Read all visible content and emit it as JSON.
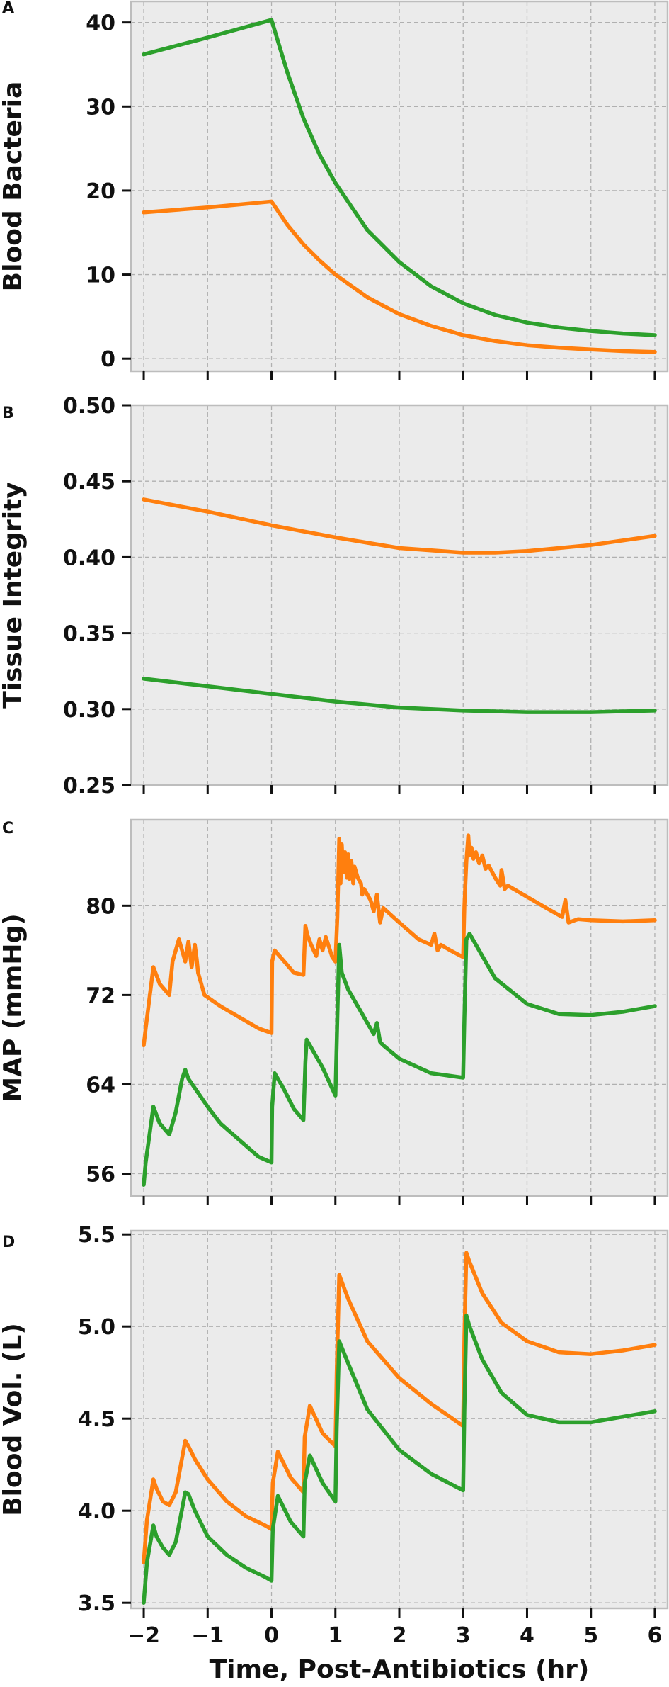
{
  "figure": {
    "xlabel": "Time, Post-Antibiotics (hr)",
    "xticks": [
      -2,
      -1,
      0,
      1,
      2,
      3,
      4,
      5,
      6
    ],
    "xlim": [
      -2.2,
      6.2
    ],
    "colors": {
      "orange": "#ff7f0e",
      "green": "#2ca02c",
      "panel_bg": "#ebebeb",
      "grid": "#b0b0b0",
      "spine": "#bdbdbd"
    }
  },
  "chart_data": [
    {
      "type": "line",
      "panel_letter": "A",
      "ylabel": "Blood Bacteria",
      "ylim": [
        -1.5,
        42.5
      ],
      "yticks": [
        0,
        10,
        20,
        30,
        40
      ],
      "ytick_labels": [
        "0",
        "10",
        "20",
        "30",
        "40"
      ],
      "grid": true,
      "series": [
        {
          "color": "#2ca02c",
          "x": [
            -2,
            -1,
            0,
            0.25,
            0.5,
            0.75,
            1,
            1.5,
            2,
            2.5,
            3,
            3.5,
            4,
            4.5,
            5,
            5.5,
            6
          ],
          "y": [
            36.2,
            38.2,
            40.3,
            34.0,
            28.6,
            24.3,
            20.9,
            15.3,
            11.5,
            8.6,
            6.6,
            5.2,
            4.3,
            3.7,
            3.3,
            3.0,
            2.8
          ]
        },
        {
          "color": "#ff7f0e",
          "x": [
            -2,
            -1,
            0,
            0.25,
            0.5,
            0.75,
            1,
            1.5,
            2,
            2.5,
            3,
            3.5,
            4,
            4.5,
            5,
            5.5,
            6
          ],
          "y": [
            17.4,
            18.0,
            18.7,
            15.9,
            13.6,
            11.7,
            10.0,
            7.3,
            5.3,
            3.9,
            2.8,
            2.1,
            1.6,
            1.3,
            1.1,
            0.9,
            0.8
          ]
        }
      ]
    },
    {
      "type": "line",
      "panel_letter": "B",
      "ylabel": "Tissue Integrity",
      "ylim": [
        0.25,
        0.5
      ],
      "yticks": [
        0.25,
        0.3,
        0.35,
        0.4,
        0.45,
        0.5
      ],
      "ytick_labels": [
        "0.25",
        "0.30",
        "0.35",
        "0.40",
        "0.45",
        "0.50"
      ],
      "grid": true,
      "series": [
        {
          "color": "#ff7f0e",
          "x": [
            -2,
            -1,
            0,
            1,
            2,
            3,
            3.5,
            4,
            5,
            6
          ],
          "y": [
            0.438,
            0.43,
            0.421,
            0.413,
            0.406,
            0.403,
            0.403,
            0.404,
            0.408,
            0.414
          ]
        },
        {
          "color": "#2ca02c",
          "x": [
            -2,
            -1,
            0,
            1,
            2,
            3,
            4,
            5,
            6
          ],
          "y": [
            0.32,
            0.315,
            0.31,
            0.305,
            0.301,
            0.299,
            0.298,
            0.298,
            0.299
          ]
        }
      ]
    },
    {
      "type": "line",
      "panel_letter": "C",
      "ylabel": "MAP (mmHg)",
      "ylim": [
        54,
        87.7
      ],
      "yticks": [
        56,
        64,
        72,
        80
      ],
      "ytick_labels": [
        "56",
        "64",
        "72",
        "80"
      ],
      "grid": true,
      "series": [
        {
          "color": "#ff7f0e",
          "x": [
            -2,
            -1.97,
            -1.85,
            -1.75,
            -1.6,
            -1.55,
            -1.45,
            -1.35,
            -1.3,
            -1.25,
            -1.2,
            -1.17,
            -1.15,
            -1.1,
            -1.05,
            -0.8,
            -0.5,
            -0.2,
            0,
            0.01,
            0.05,
            0.2,
            0.35,
            0.5,
            0.53,
            0.56,
            0.62,
            0.7,
            0.75,
            0.8,
            0.85,
            0.9,
            0.95,
            1,
            1.03,
            1.06,
            1.08,
            1.1,
            1.12,
            1.15,
            1.18,
            1.2,
            1.22,
            1.25,
            1.28,
            1.3,
            1.35,
            1.4,
            1.42,
            1.45,
            1.55,
            1.6,
            1.65,
            1.7,
            1.75,
            2,
            2.3,
            2.5,
            2.55,
            2.6,
            2.65,
            2.8,
            3,
            3.02,
            3.05,
            3.08,
            3.1,
            3.13,
            3.16,
            3.2,
            3.25,
            3.3,
            3.35,
            3.4,
            3.5,
            3.58,
            3.6,
            3.65,
            3.7,
            4,
            4.3,
            4.55,
            4.6,
            4.65,
            4.8,
            5,
            5.5,
            6
          ],
          "y": [
            67.5,
            69,
            74.5,
            73,
            72,
            75,
            77,
            75,
            76.8,
            74.5,
            76.5,
            75.2,
            74,
            73,
            72,
            71,
            70,
            69,
            68.6,
            75,
            76,
            75,
            74,
            73.8,
            78.2,
            77.4,
            76.5,
            75.5,
            77,
            76,
            77.2,
            76.3,
            75.4,
            75,
            79,
            86,
            82,
            85.5,
            83,
            84.8,
            82.5,
            84.6,
            82.4,
            84,
            82,
            83.5,
            82.5,
            82,
            81,
            81.5,
            80.5,
            79.5,
            81,
            78.5,
            79.8,
            78.5,
            77,
            76.5,
            77.5,
            76,
            76.5,
            76,
            75.4,
            80,
            84,
            86.3,
            84.5,
            85.2,
            84.2,
            84.8,
            83.8,
            84.5,
            83.3,
            83.6,
            82.5,
            81.8,
            83.2,
            81.5,
            81.8,
            80.8,
            79.8,
            79,
            80.5,
            78.5,
            78.8,
            78.7,
            78.6,
            78.7
          ]
        },
        {
          "color": "#2ca02c",
          "x": [
            -2,
            -1.97,
            -1.85,
            -1.75,
            -1.6,
            -1.5,
            -1.4,
            -1.35,
            -1.3,
            -1.0,
            -0.8,
            -0.5,
            -0.2,
            0,
            0.01,
            0.05,
            0.2,
            0.35,
            0.5,
            0.53,
            0.55,
            0.65,
            0.8,
            1,
            1.03,
            1.06,
            1.1,
            1.2,
            1.3,
            1.4,
            1.5,
            1.6,
            1.65,
            1.7,
            1.75,
            2,
            2.5,
            3,
            3.02,
            3.05,
            3.1,
            3.2,
            3.3,
            3.35,
            3.5,
            4,
            4.5,
            5,
            5.5,
            6
          ],
          "y": [
            55,
            57,
            62,
            60.5,
            59.5,
            61.5,
            64.5,
            65.3,
            64.5,
            62,
            60.5,
            59,
            57.5,
            57,
            62,
            65,
            63.5,
            61.8,
            60.8,
            66,
            68,
            67,
            65.5,
            63,
            70,
            76.5,
            74,
            72.5,
            71.5,
            70.5,
            69.5,
            68.5,
            69.5,
            67.8,
            67.5,
            66.3,
            65,
            64.6,
            70,
            77,
            77.5,
            76.5,
            75.5,
            75,
            73.5,
            71.2,
            70.3,
            70.2,
            70.5,
            71
          ]
        }
      ]
    },
    {
      "type": "line",
      "panel_letter": "D",
      "ylabel": "Blood Vol. (L)",
      "ylim": [
        3.47,
        5.52
      ],
      "yticks": [
        3.5,
        4.0,
        4.5,
        5.0,
        5.5
      ],
      "ytick_labels": [
        "3.5",
        "4.0",
        "4.5",
        "5.0",
        "5.5"
      ],
      "grid": true,
      "series": [
        {
          "color": "#ff7f0e",
          "x": [
            -2,
            -1.95,
            -1.85,
            -1.8,
            -1.7,
            -1.6,
            -1.5,
            -1.35,
            -1.3,
            -1.2,
            -1.0,
            -0.7,
            -0.4,
            -0.1,
            0,
            0.02,
            0.1,
            0.3,
            0.5,
            0.52,
            0.6,
            0.8,
            1,
            1.02,
            1.06,
            1.2,
            1.5,
            2.0,
            2.5,
            3,
            3.02,
            3.05,
            3.1,
            3.3,
            3.6,
            4,
            4.5,
            5,
            5.5,
            6
          ],
          "y": [
            3.72,
            3.95,
            4.17,
            4.12,
            4.05,
            4.03,
            4.1,
            4.38,
            4.35,
            4.28,
            4.17,
            4.05,
            3.97,
            3.92,
            3.9,
            4.15,
            4.32,
            4.18,
            4.1,
            4.4,
            4.57,
            4.42,
            4.35,
            4.75,
            5.28,
            5.15,
            4.92,
            4.72,
            4.58,
            4.46,
            4.95,
            5.4,
            5.35,
            5.18,
            5.02,
            4.92,
            4.86,
            4.85,
            4.87,
            4.9
          ]
        },
        {
          "color": "#2ca02c",
          "x": [
            -2,
            -1.95,
            -1.85,
            -1.8,
            -1.7,
            -1.6,
            -1.5,
            -1.35,
            -1.3,
            -1.2,
            -1.0,
            -0.7,
            -0.4,
            -0.1,
            0,
            0.02,
            0.1,
            0.3,
            0.5,
            0.52,
            0.6,
            0.8,
            1,
            1.02,
            1.06,
            1.2,
            1.5,
            2.0,
            2.5,
            3,
            3.02,
            3.05,
            3.1,
            3.3,
            3.6,
            4,
            4.5,
            5,
            5.5,
            6
          ],
          "y": [
            3.5,
            3.72,
            3.92,
            3.86,
            3.8,
            3.76,
            3.83,
            4.1,
            4.09,
            4.0,
            3.86,
            3.76,
            3.69,
            3.64,
            3.62,
            3.9,
            4.08,
            3.94,
            3.86,
            4.15,
            4.3,
            4.15,
            4.05,
            4.45,
            4.92,
            4.8,
            4.55,
            4.33,
            4.2,
            4.11,
            4.55,
            5.06,
            5.0,
            4.82,
            4.64,
            4.52,
            4.48,
            4.48,
            4.51,
            4.54
          ]
        }
      ]
    }
  ]
}
